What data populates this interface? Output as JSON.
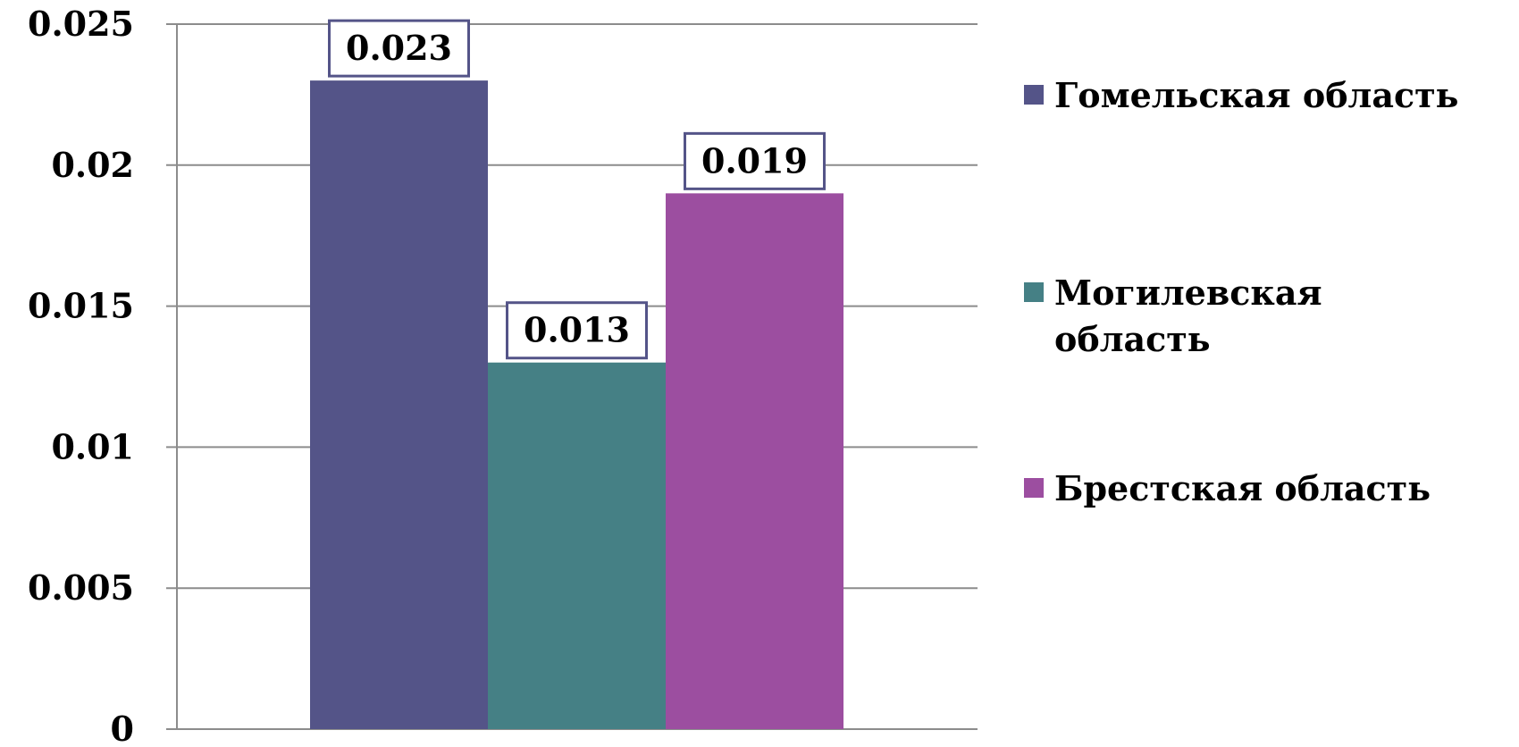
{
  "chart_data": {
    "type": "bar",
    "categories": [
      ""
    ],
    "series": [
      {
        "name": "Гомельская область",
        "values": [
          0.023
        ],
        "color": "#545488"
      },
      {
        "name": "Могилевская область",
        "values": [
          0.013
        ],
        "color": "#458085"
      },
      {
        "name": "Брестская область",
        "values": [
          0.019
        ],
        "color": "#9C4EA0"
      }
    ],
    "data_labels": [
      "0.023",
      "0.013",
      "0.019"
    ],
    "y_ticks": [
      "0",
      "0.005",
      "0.01",
      "0.015",
      "0.02",
      "0.025"
    ],
    "ylim": [
      0,
      0.025
    ],
    "grid": true,
    "legend_position": "right",
    "title": "",
    "xlabel": "",
    "ylabel": ""
  }
}
